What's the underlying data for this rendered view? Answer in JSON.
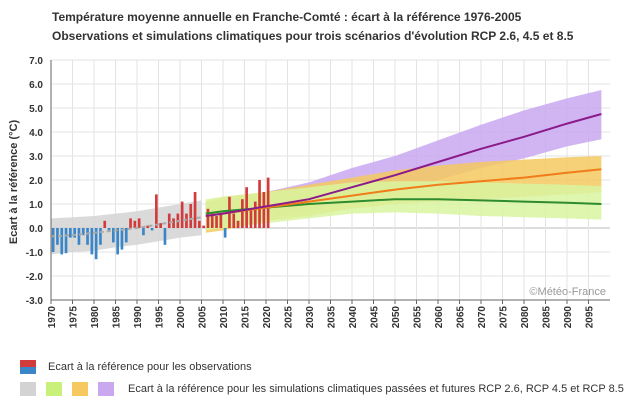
{
  "title": "Température moyenne annuelle en Franche-Comté : écart à la référence 1976-2005",
  "subtitle": "Observations et simulations climatiques pour trois scénarios d'évolution RCP 2.6, 4.5 et 8.5",
  "watermark": "©Météo-France",
  "legend": {
    "observations": "Ecart à la référence pour les observations",
    "simulations": "Ecart à la référence pour les simulations climatiques passées et futures RCP 2.6, RCP 4.5 et RCP 8.5"
  },
  "colors": {
    "positive_bar": "#d13b3b",
    "negative_bar": "#3a86c8",
    "historical_band": "#d3d3d3",
    "rcp26_band": "#d9f5a0",
    "rcp45_band": "#f5c960",
    "rcp85_band": "#c9a8f0",
    "rcp26_line": "#2e8b2e",
    "rcp45_line": "#f07c1a",
    "rcp85_line": "#8b1a8b",
    "historical_line": "#aaaaaa"
  },
  "chart_data": {
    "type": "bar",
    "title": "Température moyenne annuelle en Franche-Comté : écart à la référence 1976-2005",
    "subtitle": "Observations et simulations climatiques pour trois scénarios d'évolution RCP 2.6, 4.5 et 8.5",
    "ylabel": "Ecart à la référence (°C)",
    "xlabel": "",
    "xlim": [
      1970,
      2100
    ],
    "ylim": [
      -3.0,
      7.0
    ],
    "yticks": [
      "7.0",
      "6.0",
      "5.0",
      "4.0",
      "3.0",
      "2.0",
      "1.0",
      "0.0",
      "-1.0",
      "-2.0",
      "-3.0"
    ],
    "xticks": [
      "1970",
      "1975",
      "1980",
      "1985",
      "1990",
      "1995",
      "2000",
      "2005",
      "2010",
      "2015",
      "2020",
      "2025",
      "2030",
      "2035",
      "2040",
      "2045",
      "2050",
      "2055",
      "2060",
      "2065",
      "2070",
      "2075",
      "2080",
      "2085",
      "2090",
      "2095"
    ],
    "grid": true,
    "observations": {
      "years": [
        1970,
        1971,
        1972,
        1973,
        1974,
        1975,
        1976,
        1977,
        1978,
        1979,
        1980,
        1981,
        1982,
        1983,
        1984,
        1985,
        1986,
        1987,
        1988,
        1989,
        1990,
        1991,
        1992,
        1993,
        1994,
        1995,
        1996,
        1997,
        1998,
        1999,
        2000,
        2001,
        2002,
        2003,
        2004,
        2005,
        2006,
        2007,
        2008,
        2009,
        2010,
        2011,
        2012,
        2013,
        2014,
        2015,
        2016,
        2017,
        2018,
        2019,
        2020
      ],
      "values": [
        -1.0,
        -0.7,
        -1.1,
        -1.05,
        -0.4,
        -0.4,
        -0.7,
        -0.3,
        -0.7,
        -1.1,
        -1.3,
        -0.7,
        0.3,
        -0.1,
        -0.6,
        -1.1,
        -0.9,
        -0.6,
        0.4,
        0.3,
        0.4,
        -0.3,
        0.1,
        -0.1,
        1.4,
        0.2,
        -0.7,
        0.6,
        0.4,
        0.6,
        1.1,
        0.6,
        1.0,
        1.5,
        0.3,
        0.1,
        0.8,
        0.6,
        0.5,
        0.6,
        -0.4,
        1.3,
        0.6,
        0.3,
        1.2,
        1.7,
        0.8,
        1.1,
        2.0,
        1.5,
        2.1
      ]
    },
    "series": [
      {
        "name": "RCP 2.6",
        "x": [
          2006,
          2010,
          2020,
          2030,
          2040,
          2050,
          2060,
          2070,
          2080,
          2090,
          2098
        ],
        "mean": [
          0.6,
          0.7,
          0.85,
          1.0,
          1.1,
          1.2,
          1.2,
          1.15,
          1.1,
          1.05,
          1.0
        ],
        "low": [
          -0.1,
          0.0,
          0.2,
          0.4,
          0.6,
          0.65,
          0.6,
          0.5,
          0.45,
          0.4,
          0.35
        ],
        "high": [
          1.2,
          1.3,
          1.5,
          1.7,
          1.9,
          1.95,
          1.95,
          1.9,
          1.85,
          1.8,
          1.75
        ]
      },
      {
        "name": "RCP 4.5",
        "x": [
          2006,
          2010,
          2020,
          2030,
          2040,
          2050,
          2060,
          2070,
          2080,
          2090,
          2098
        ],
        "mean": [
          0.5,
          0.6,
          0.85,
          1.1,
          1.35,
          1.6,
          1.8,
          1.95,
          2.1,
          2.3,
          2.45
        ],
        "low": [
          -0.2,
          -0.1,
          0.3,
          0.5,
          0.8,
          1.0,
          1.1,
          1.2,
          1.3,
          1.4,
          1.5
        ],
        "high": [
          1.1,
          1.3,
          1.5,
          1.8,
          2.1,
          2.4,
          2.6,
          2.75,
          2.85,
          2.95,
          3.0
        ]
      },
      {
        "name": "RCP 8.5",
        "x": [
          2006,
          2010,
          2020,
          2030,
          2040,
          2050,
          2060,
          2070,
          2080,
          2090,
          2098
        ],
        "mean": [
          0.5,
          0.6,
          0.9,
          1.2,
          1.7,
          2.2,
          2.75,
          3.3,
          3.8,
          4.35,
          4.75
        ],
        "low": [
          0.0,
          0.1,
          0.4,
          0.7,
          1.1,
          1.5,
          2.0,
          2.5,
          2.9,
          3.4,
          3.7
        ],
        "high": [
          1.1,
          1.2,
          1.5,
          1.9,
          2.5,
          3.0,
          3.65,
          4.3,
          4.9,
          5.4,
          5.75
        ]
      }
    ],
    "historical": {
      "x": [
        1970,
        1975,
        1980,
        1985,
        1990,
        1995,
        2000,
        2005
      ],
      "mean": [
        -0.35,
        -0.3,
        -0.2,
        -0.1,
        0.0,
        0.15,
        0.3,
        0.45
      ],
      "low": [
        -1.1,
        -1.0,
        -0.95,
        -0.8,
        -0.7,
        -0.55,
        -0.4,
        -0.3
      ],
      "high": [
        0.4,
        0.45,
        0.5,
        0.6,
        0.7,
        0.85,
        1.0,
        1.15
      ]
    }
  }
}
